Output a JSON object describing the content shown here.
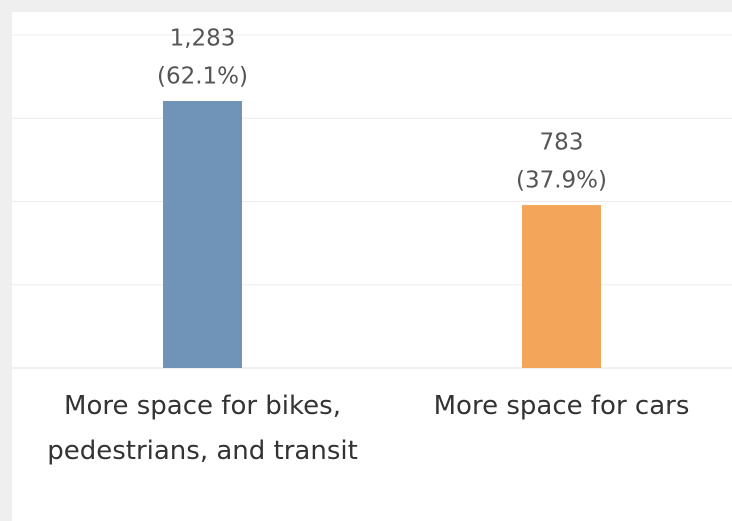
{
  "chart_data": {
    "type": "bar",
    "categories": [
      "More space for bikes, pedestrians, and transit",
      "More space for cars"
    ],
    "values": [
      1283,
      783
    ],
    "value_labels": [
      "1,283",
      "783"
    ],
    "share_labels": [
      "(62.1%)",
      "(37.9%)"
    ],
    "colors": [
      "#7093b8",
      "#f3a65a"
    ],
    "ylim": [
      0,
      1600
    ],
    "yticks": [
      0,
      400,
      800,
      1200,
      1600
    ],
    "grid": true
  }
}
